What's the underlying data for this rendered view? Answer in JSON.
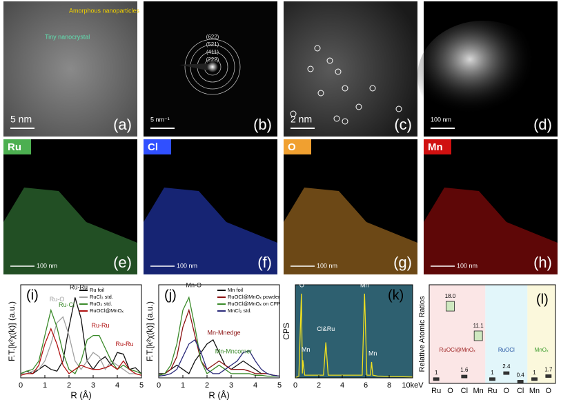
{
  "image_panels": [
    {
      "label": "(a)",
      "scale_bar": "5 nm",
      "annotations": [
        "Amorphous nanoparticles",
        "Tiny nanocrystal"
      ]
    },
    {
      "label": "(b)",
      "scale_bar": "5 nm⁻¹",
      "rings": [
        "(622)",
        "(521)",
        "(411)",
        "(222)"
      ]
    },
    {
      "label": "(c)",
      "scale_bar": "2 nm"
    },
    {
      "label": "(d)",
      "scale_bar": "100 nm"
    }
  ],
  "element_maps": [
    {
      "element": "Ru",
      "color": "#4caf50",
      "scale_bar": "100 nm",
      "label": "(e)"
    },
    {
      "element": "Cl",
      "color": "#3050ff",
      "scale_bar": "100 nm",
      "label": "(f)"
    },
    {
      "element": "O",
      "color": "#f0a030",
      "scale_bar": "100 nm",
      "label": "(g)"
    },
    {
      "element": "Mn",
      "color": "#d01010",
      "scale_bar": "100 nm",
      "label": "(h)"
    }
  ],
  "chart_data": [
    {
      "type": "line",
      "label": "(i)",
      "ylabel": "F.T.[k²χ(k)] (a.u.)",
      "xlabel": "R (Å)",
      "x": [
        0,
        0.25,
        0.5,
        0.75,
        1,
        1.25,
        1.5,
        1.75,
        2,
        2.25,
        2.5,
        2.75,
        3,
        3.25,
        3.5,
        3.75,
        4,
        4.25,
        4.5,
        4.75,
        5
      ],
      "xlim": [
        0,
        5
      ],
      "xticks": [
        0,
        1,
        2,
        3,
        4,
        5
      ],
      "ylim": [
        0,
        1.1
      ],
      "legend": "upper right",
      "series": [
        {
          "name": "Ru foil",
          "color": "#111111",
          "values": [
            0.05,
            0.08,
            0.05,
            0.1,
            0.15,
            0.1,
            0.08,
            0.2,
            0.6,
            0.95,
            0.7,
            0.2,
            0.1,
            0.2,
            0.25,
            0.15,
            0.3,
            0.28,
            0.1,
            0.12,
            0.05
          ]
        },
        {
          "name": "RuCl₃ std.",
          "color": "#a0a0a0",
          "values": [
            0.05,
            0.05,
            0.08,
            0.1,
            0.2,
            0.4,
            0.65,
            0.72,
            0.5,
            0.2,
            0.1,
            0.2,
            0.3,
            0.25,
            0.1,
            0.2,
            0.15,
            0.1,
            0.05,
            0.05,
            0.03
          ]
        },
        {
          "name": "RuO₂ std.",
          "color": "#3a8a2a",
          "values": [
            0.05,
            0.08,
            0.1,
            0.2,
            0.5,
            0.8,
            0.6,
            0.3,
            0.1,
            0.05,
            0.2,
            0.45,
            0.5,
            0.5,
            0.35,
            0.2,
            0.1,
            0.15,
            0.1,
            0.08,
            0.05
          ]
        },
        {
          "name": "RuOCl@MnOₓ",
          "color": "#b01010",
          "values": [
            0.03,
            0.05,
            0.05,
            0.15,
            0.4,
            0.58,
            0.4,
            0.15,
            0.05,
            0.1,
            0.15,
            0.12,
            0.1,
            0.1,
            0.12,
            0.15,
            0.1,
            0.2,
            0.1,
            0.05,
            0.03
          ]
        }
      ],
      "annotations": [
        "Ru-Ru",
        "Ru-O",
        "Ru-Cl",
        "Ru-Ru",
        "Ru-Ru"
      ]
    },
    {
      "type": "line",
      "label": "(j)",
      "ylabel": "F.T.[k²χ(k)] (a.u.)",
      "xlabel": "R (Å)",
      "x": [
        0,
        0.25,
        0.5,
        0.75,
        1,
        1.25,
        1.5,
        1.75,
        2,
        2.25,
        2.5,
        2.75,
        3,
        3.25,
        3.5,
        3.75,
        4,
        4.25,
        4.5,
        4.75,
        5
      ],
      "xlim": [
        0,
        5
      ],
      "xticks": [
        0,
        1,
        2,
        3,
        4,
        5
      ],
      "ylim": [
        0,
        1.1
      ],
      "legend": "upper right",
      "series": [
        {
          "name": "Mn foil",
          "color": "#111111",
          "values": [
            0.05,
            0.05,
            0.1,
            0.15,
            0.1,
            0.05,
            0.2,
            0.3,
            0.4,
            0.45,
            0.3,
            0.15,
            0.1,
            0.15,
            0.2,
            0.15,
            0.1,
            0.05,
            0.05,
            0.03,
            0.02
          ]
        },
        {
          "name": "RuOCl@MnOₓ powder",
          "color": "#8b1010",
          "values": [
            0.03,
            0.05,
            0.1,
            0.25,
            0.6,
            0.8,
            0.5,
            0.2,
            0.1,
            0.15,
            0.2,
            0.15,
            0.1,
            0.1,
            0.1,
            0.08,
            0.05,
            0.05,
            0.05,
            0.03,
            0.02
          ]
        },
        {
          "name": "RuOCl@MnOₓ on CFP",
          "color": "#3a8a2a",
          "values": [
            0.03,
            0.05,
            0.15,
            0.4,
            0.8,
            0.95,
            0.6,
            0.2,
            0.05,
            0.1,
            0.15,
            0.1,
            0.05,
            0.05,
            0.05,
            0.05,
            0.03,
            0.03,
            0.02,
            0.02,
            0.02
          ]
        },
        {
          "name": "MnCl₂ std.",
          "color": "#2a2a7a",
          "values": [
            0.02,
            0.03,
            0.05,
            0.1,
            0.25,
            0.4,
            0.45,
            0.3,
            0.1,
            0.05,
            0.05,
            0.1,
            0.15,
            0.2,
            0.3,
            0.32,
            0.2,
            0.1,
            0.05,
            0.03,
            0.02
          ]
        }
      ],
      "annotations": [
        "Mn-O",
        "Mn-Mnedge",
        "Mn-Mncorner"
      ]
    },
    {
      "type": "line",
      "label": "(k)",
      "ylabel": "CPS",
      "background": "#2e6070",
      "x": [
        0,
        0.3,
        0.52,
        0.6,
        0.64,
        0.8,
        1,
        2.4,
        2.6,
        2.8,
        5.7,
        5.9,
        6.1,
        6.4,
        6.5,
        6.6,
        7,
        10
      ],
      "xlim": [
        0,
        10
      ],
      "xticks": [
        0,
        2,
        4,
        6,
        8,
        {
          "value": 10,
          "label": "10keV"
        }
      ],
      "ylim": [
        0,
        1.05
      ],
      "series": [
        {
          "color": "#f0e020",
          "values": [
            0,
            0.02,
            0.95,
            0.05,
            0.2,
            0.03,
            0.03,
            0.03,
            0.4,
            0.03,
            0.03,
            0.95,
            0.03,
            0.03,
            0.18,
            0.03,
            0.02,
            0.01
          ]
        }
      ],
      "annotations": [
        "O",
        "Mn",
        "Cl&Ru",
        "Mn",
        "Mn"
      ]
    },
    {
      "type": "box",
      "label": "(l)",
      "ylabel": "Relative Atomic Ratios",
      "categories": [
        "Ru",
        "O",
        "Cl",
        "Mn",
        "Ru",
        "O",
        "Cl",
        "Mn",
        "O"
      ],
      "values": [
        1,
        18,
        1.6,
        11.1,
        1,
        2.4,
        0.4,
        1,
        1.7
      ],
      "value_labels": [
        "1",
        "18.0",
        "1.6",
        "11.1",
        "1",
        "2.4",
        "0.4",
        "1",
        "1.7"
      ],
      "ylim": [
        0,
        23
      ],
      "groups": [
        {
          "name": "RuOCl@MnOₓ",
          "color": "#9a1a1a",
          "background": "#fbe6e6"
        },
        {
          "name": "RuOCl",
          "color": "#2050a0",
          "background": "#e2f6fa"
        },
        {
          "name": "MnOₓ",
          "color": "#3a9a2a",
          "background": "#fbf8dc"
        }
      ]
    }
  ]
}
